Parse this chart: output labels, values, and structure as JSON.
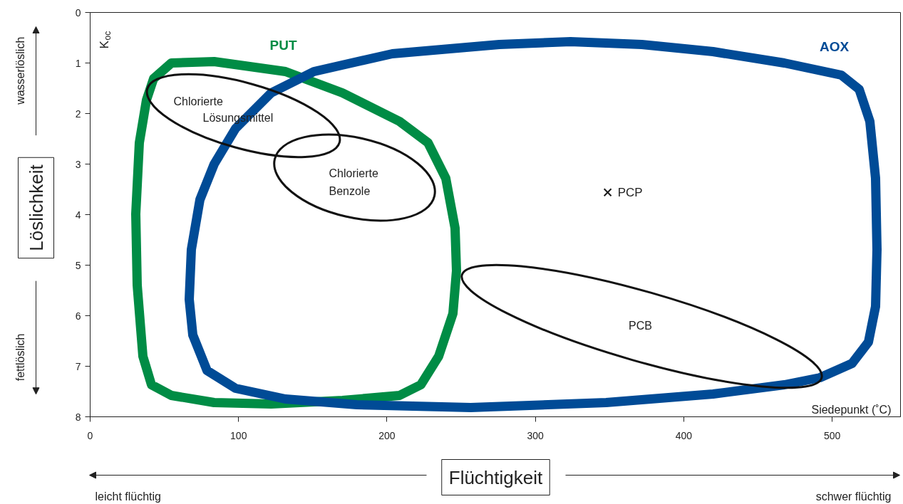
{
  "chart_data": {
    "type": "scatter",
    "xlabel": "Flüchtigkeit",
    "ylabel": "Löslichkeit",
    "xlim": [
      0,
      546
    ],
    "ylim": [
      8,
      0
    ],
    "xticks": [
      0,
      100,
      200,
      300,
      400,
      500
    ],
    "yticks": [
      0,
      1,
      2,
      3,
      4,
      5,
      6,
      7,
      8
    ],
    "series": [
      {
        "name": "PCP",
        "marker": "cross",
        "color": "#1a1a1a",
        "x": [
          348.7
        ],
        "values": [
          3.56
        ]
      }
    ],
    "annotations": [
      "K$_{oc}$",
      "Siedepunkt (˚C)",
      "wasserlöslich",
      "fettlöslich",
      "leicht flüchtig",
      "schwer flüchtig",
      "Chlorierte",
      "Lösungsmittel",
      "Chlorierte",
      "Benzole",
      "PCB",
      "PUT",
      "AOX"
    ]
  }
}
